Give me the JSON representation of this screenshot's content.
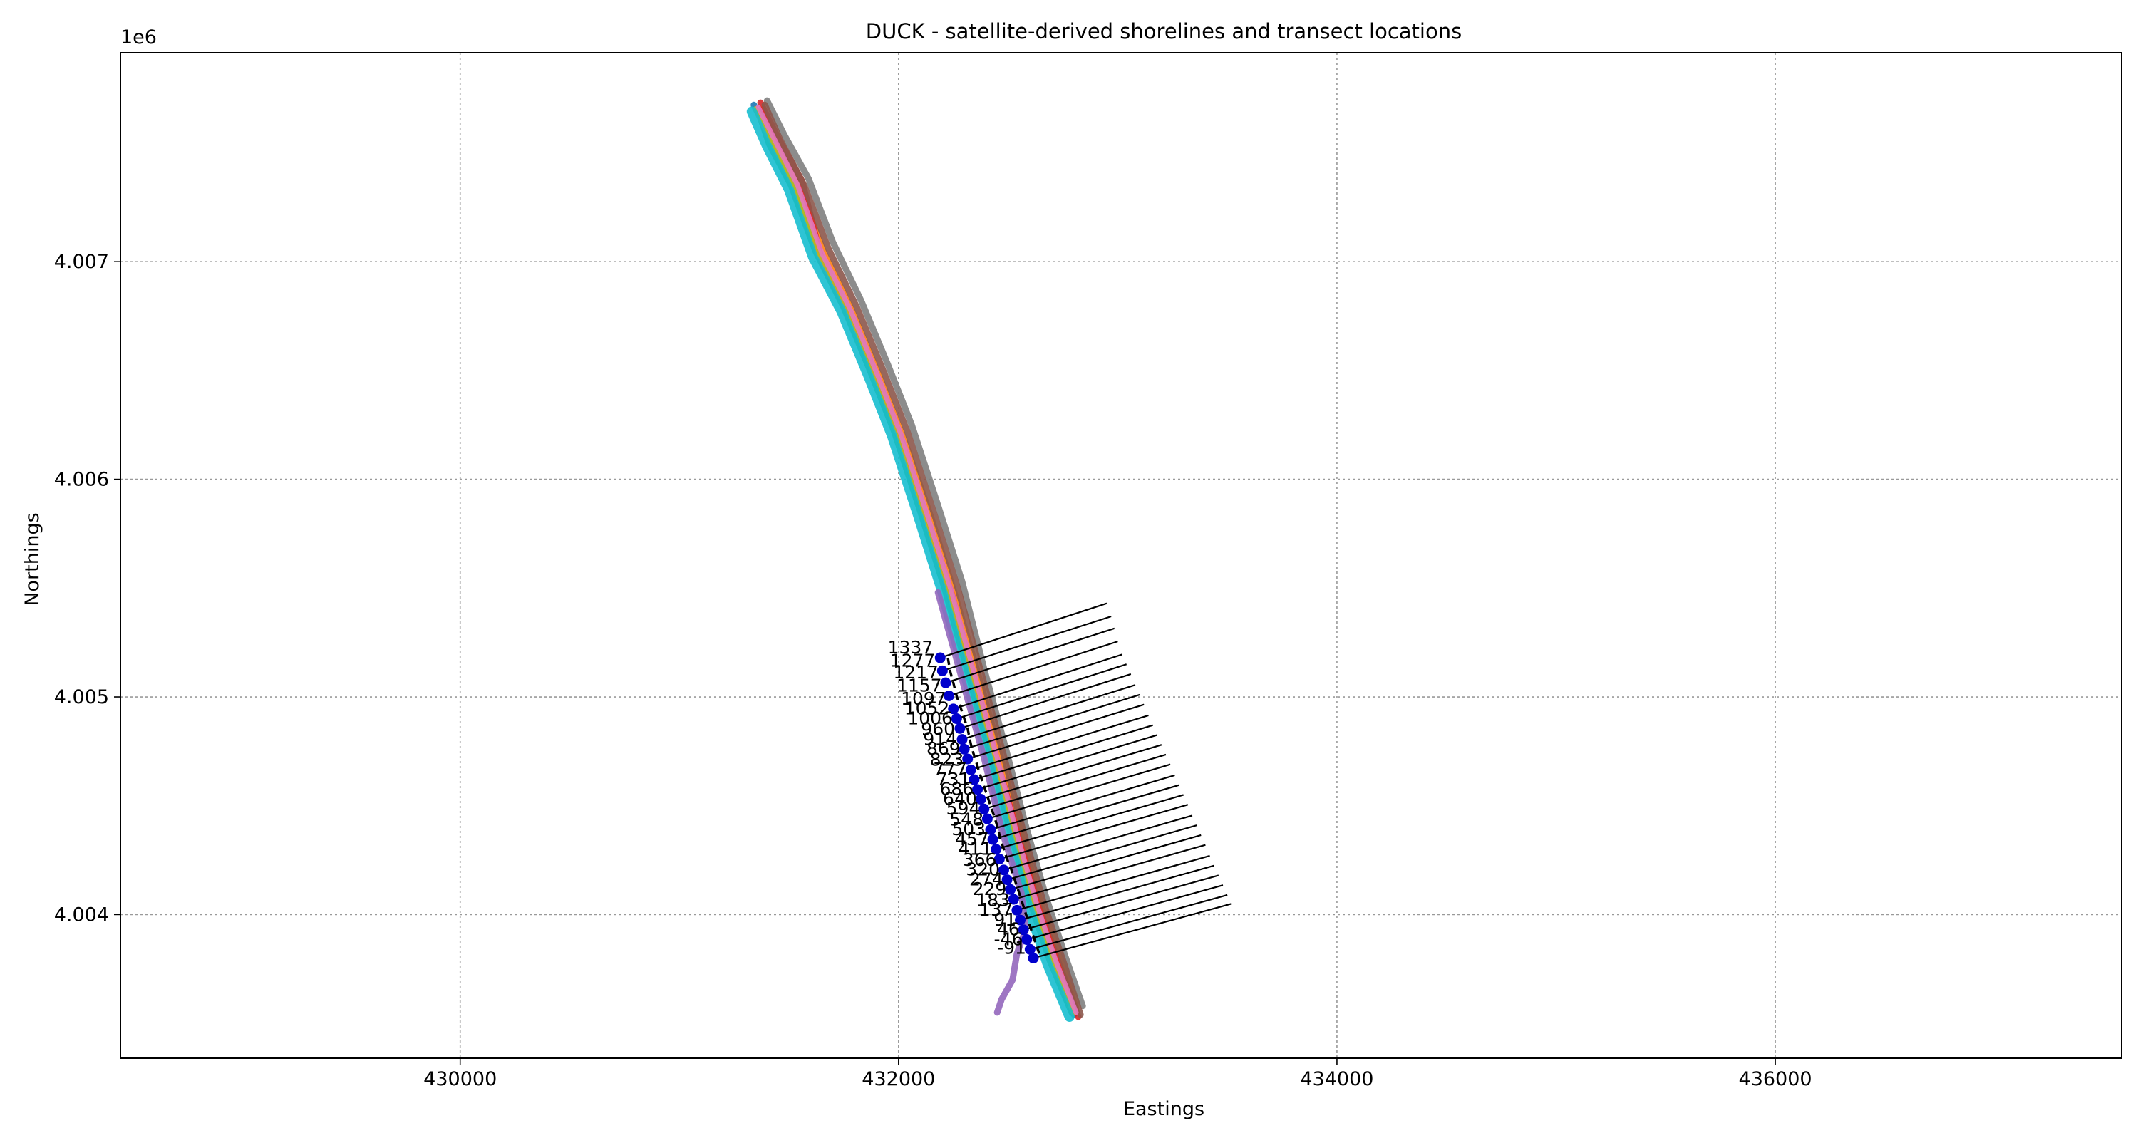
{
  "chart_data": {
    "type": "line",
    "title": "DUCK - satellite-derived shorelines and transect locations",
    "xlabel": "Eastings",
    "ylabel": "Northings",
    "y_offset_label": "1e6",
    "xlim": [
      428450,
      437580
    ],
    "ylim": [
      4003340,
      4007960
    ],
    "grid": true,
    "x_ticks": [
      430000,
      432000,
      434000,
      436000
    ],
    "x_tick_labels": [
      "430000",
      "432000",
      "434000",
      "436000"
    ],
    "y_ticks": [
      4004000,
      4005000,
      4006000,
      4007000
    ],
    "y_tick_labels": [
      "4.004",
      "4.005",
      "4.006",
      "4.007"
    ],
    "shorelines": [
      {
        "color": "#1f77b4",
        "points": [
          [
            431340,
            4007720
          ],
          [
            431420,
            4007560
          ],
          [
            431520,
            4007360
          ],
          [
            431630,
            4007060
          ],
          [
            431760,
            4006800
          ],
          [
            431880,
            4006510
          ],
          [
            431990,
            4006230
          ],
          [
            432110,
            4005860
          ],
          [
            432220,
            4005510
          ],
          [
            432330,
            4005110
          ],
          [
            432430,
            4004740
          ],
          [
            432520,
            4004390
          ],
          [
            432610,
            4004070
          ],
          [
            432700,
            4003800
          ],
          [
            432800,
            4003540
          ]
        ]
      },
      {
        "color": "#ff7f0e",
        "points": [
          [
            431380,
            4007700
          ],
          [
            431440,
            4007550
          ],
          [
            431540,
            4007360
          ],
          [
            431660,
            4007040
          ],
          [
            431790,
            4006770
          ],
          [
            431910,
            4006480
          ],
          [
            432030,
            4006170
          ],
          [
            432150,
            4005820
          ],
          [
            432260,
            4005460
          ],
          [
            432370,
            4005080
          ],
          [
            432470,
            4004710
          ],
          [
            432560,
            4004370
          ],
          [
            432650,
            4004050
          ],
          [
            432740,
            4003790
          ],
          [
            432810,
            4003570
          ]
        ]
      },
      {
        "color": "#2ca02c",
        "points": [
          [
            431360,
            4007690
          ],
          [
            431410,
            4007540
          ],
          [
            431510,
            4007350
          ],
          [
            431620,
            4007050
          ],
          [
            431750,
            4006790
          ],
          [
            431870,
            4006500
          ],
          [
            431980,
            4006220
          ],
          [
            432100,
            4005850
          ],
          [
            432210,
            4005500
          ],
          [
            432320,
            4005100
          ],
          [
            432420,
            4004730
          ],
          [
            432510,
            4004380
          ],
          [
            432600,
            4004060
          ],
          [
            432690,
            4003790
          ],
          [
            432790,
            4003550
          ]
        ]
      },
      {
        "color": "#d62728",
        "points": [
          [
            431370,
            4007730
          ],
          [
            431450,
            4007570
          ],
          [
            431560,
            4007370
          ],
          [
            431650,
            4007000
          ],
          [
            431780,
            4006760
          ],
          [
            431900,
            4006470
          ],
          [
            432010,
            4006190
          ],
          [
            432140,
            4005780
          ],
          [
            432240,
            4005480
          ],
          [
            432350,
            4005060
          ],
          [
            432450,
            4004700
          ],
          [
            432550,
            4004350
          ],
          [
            432640,
            4004040
          ],
          [
            432730,
            4003780
          ],
          [
            432820,
            4003530
          ]
        ]
      },
      {
        "color": "#7f7f7f",
        "points": [
          [
            431400,
            4007740
          ],
          [
            431480,
            4007580
          ],
          [
            431590,
            4007380
          ],
          [
            431700,
            4007090
          ],
          [
            431830,
            4006820
          ],
          [
            431950,
            4006530
          ],
          [
            432060,
            4006250
          ],
          [
            432180,
            4005880
          ],
          [
            432290,
            4005530
          ],
          [
            432390,
            4005130
          ],
          [
            432490,
            4004760
          ],
          [
            432580,
            4004410
          ],
          [
            432670,
            4004090
          ],
          [
            432760,
            4003810
          ],
          [
            432840,
            4003580
          ]
        ]
      },
      {
        "color": "#bcbd22",
        "points": [
          [
            431350,
            4007700
          ],
          [
            431430,
            4007540
          ],
          [
            431530,
            4007340
          ],
          [
            431640,
            4007030
          ],
          [
            431770,
            4006780
          ],
          [
            431890,
            4006490
          ],
          [
            432000,
            4006210
          ],
          [
            432120,
            4005840
          ],
          [
            432230,
            4005490
          ],
          [
            432340,
            4005090
          ],
          [
            432440,
            4004720
          ],
          [
            432530,
            4004370
          ],
          [
            432620,
            4004050
          ],
          [
            432710,
            4003780
          ],
          [
            432800,
            4003550
          ]
        ]
      },
      {
        "color": "#17becf",
        "points": [
          [
            431330,
            4007690
          ],
          [
            431400,
            4007530
          ],
          [
            431500,
            4007330
          ],
          [
            431610,
            4007020
          ],
          [
            431740,
            4006770
          ],
          [
            431860,
            4006480
          ],
          [
            431970,
            4006200
          ],
          [
            432090,
            4005830
          ],
          [
            432200,
            4005480
          ],
          [
            432310,
            4005080
          ],
          [
            432410,
            4004710
          ],
          [
            432500,
            4004360
          ],
          [
            432590,
            4004040
          ],
          [
            432680,
            4003770
          ],
          [
            432780,
            4003530
          ]
        ]
      },
      {
        "color": "#8c564b",
        "points": [
          [
            431390,
            4007720
          ],
          [
            431460,
            4007560
          ],
          [
            431570,
            4007350
          ],
          [
            431680,
            4007060
          ],
          [
            431810,
            4006790
          ],
          [
            431930,
            4006500
          ],
          [
            432040,
            4006220
          ],
          [
            432160,
            4005850
          ],
          [
            432270,
            4005500
          ],
          [
            432380,
            4005100
          ],
          [
            432480,
            4004730
          ],
          [
            432570,
            4004380
          ],
          [
            432660,
            4004060
          ],
          [
            432750,
            4003790
          ],
          [
            432830,
            4003540
          ]
        ]
      },
      {
        "color": "#9467bd",
        "points": [
          [
            432180,
            4005480
          ],
          [
            432290,
            4005080
          ],
          [
            432390,
            4004720
          ],
          [
            432470,
            4004390
          ],
          [
            432560,
            4004100
          ],
          [
            432580,
            4003930
          ],
          [
            432540,
            4003820
          ],
          [
            432520,
            4003700
          ],
          [
            432470,
            4003610
          ],
          [
            432450,
            4003550
          ]
        ]
      },
      {
        "color": "#e377c2",
        "points": [
          [
            431360,
            4007710
          ],
          [
            431440,
            4007550
          ],
          [
            431540,
            4007350
          ],
          [
            431650,
            4007040
          ],
          [
            431780,
            4006780
          ],
          [
            431900,
            4006490
          ],
          [
            432010,
            4006210
          ],
          [
            432130,
            4005840
          ],
          [
            432240,
            4005490
          ],
          [
            432350,
            4005090
          ],
          [
            432450,
            4004720
          ],
          [
            432540,
            4004370
          ],
          [
            432630,
            4004050
          ],
          [
            432720,
            4003780
          ],
          [
            432810,
            4003550
          ]
        ]
      }
    ],
    "transects": [
      {
        "label": "1337",
        "origin": [
          432190,
          4005180
        ],
        "end": [
          432950,
          4005430
        ]
      },
      {
        "label": "1277",
        "origin": [
          432200,
          4005120
        ],
        "end": [
          432970,
          4005370
        ]
      },
      {
        "label": "1217",
        "origin": [
          432215,
          4005065
        ],
        "end": [
          432985,
          4005315
        ]
      },
      {
        "label": "1157",
        "origin": [
          432230,
          4005005
        ],
        "end": [
          433000,
          4005255
        ]
      },
      {
        "label": "1097",
        "origin": [
          432250,
          4004945
        ],
        "end": [
          433020,
          4005195
        ]
      },
      {
        "label": "1052",
        "origin": [
          432265,
          4004900
        ],
        "end": [
          433040,
          4005150
        ]
      },
      {
        "label": "1006",
        "origin": [
          432280,
          4004855
        ],
        "end": [
          433060,
          4005105
        ]
      },
      {
        "label": "960",
        "origin": [
          432290,
          4004805
        ],
        "end": [
          433080,
          4005055
        ]
      },
      {
        "label": "914",
        "origin": [
          432300,
          4004760
        ],
        "end": [
          433100,
          4005010
        ]
      },
      {
        "label": "869",
        "origin": [
          432315,
          4004715
        ],
        "end": [
          433120,
          4004965
        ]
      },
      {
        "label": "823",
        "origin": [
          432330,
          4004665
        ],
        "end": [
          433140,
          4004915
        ]
      },
      {
        "label": "777",
        "origin": [
          432345,
          4004620
        ],
        "end": [
          433160,
          4004870
        ]
      },
      {
        "label": "731",
        "origin": [
          432360,
          4004575
        ],
        "end": [
          433180,
          4004825
        ]
      },
      {
        "label": "686",
        "origin": [
          432375,
          4004530
        ],
        "end": [
          433200,
          4004780
        ]
      },
      {
        "label": "640",
        "origin": [
          432390,
          4004485
        ],
        "end": [
          433220,
          4004735
        ]
      },
      {
        "label": "594",
        "origin": [
          432405,
          4004440
        ],
        "end": [
          433240,
          4004690
        ]
      },
      {
        "label": "548",
        "origin": [
          432420,
          4004390
        ],
        "end": [
          433260,
          4004640
        ]
      },
      {
        "label": "503",
        "origin": [
          432430,
          4004345
        ],
        "end": [
          433280,
          4004595
        ]
      },
      {
        "label": "457",
        "origin": [
          432445,
          4004300
        ],
        "end": [
          433300,
          4004550
        ]
      },
      {
        "label": "411",
        "origin": [
          432460,
          4004255
        ],
        "end": [
          433320,
          4004505
        ]
      },
      {
        "label": "366",
        "origin": [
          432480,
          4004205
        ],
        "end": [
          433340,
          4004455
        ]
      },
      {
        "label": "320",
        "origin": [
          432495,
          4004160
        ],
        "end": [
          433360,
          4004410
        ]
      },
      {
        "label": "274",
        "origin": [
          432510,
          4004115
        ],
        "end": [
          433380,
          4004365
        ]
      },
      {
        "label": "229",
        "origin": [
          432525,
          4004070
        ],
        "end": [
          433400,
          4004320
        ]
      },
      {
        "label": "183",
        "origin": [
          432540,
          4004020
        ],
        "end": [
          433420,
          4004270
        ]
      },
      {
        "label": "137",
        "origin": [
          432555,
          4003975
        ],
        "end": [
          433440,
          4004225
        ]
      },
      {
        "label": "91",
        "origin": [
          432570,
          4003930
        ],
        "end": [
          433460,
          4004180
        ]
      },
      {
        "label": "46",
        "origin": [
          432585,
          4003885
        ],
        "end": [
          433480,
          4004135
        ]
      },
      {
        "label": "-46",
        "origin": [
          432600,
          4003840
        ],
        "end": [
          433500,
          4004090
        ]
      },
      {
        "label": "-91",
        "origin": [
          432615,
          4003800
        ],
        "end": [
          433520,
          4004050
        ]
      }
    ]
  }
}
